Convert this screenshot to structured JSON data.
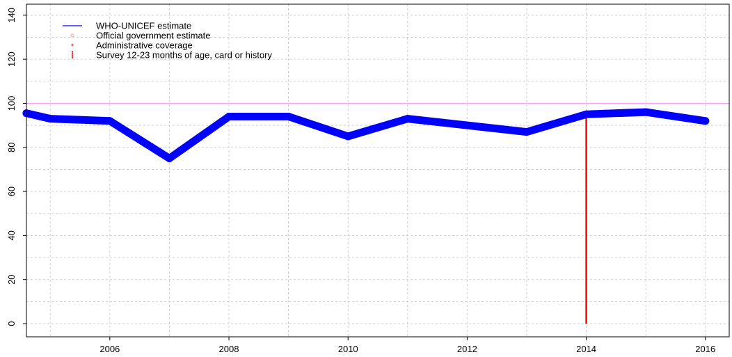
{
  "chart_data": {
    "type": "line",
    "title": "",
    "xlabel": "",
    "ylabel": "",
    "xlim": [
      2004.6,
      2016.4
    ],
    "ylim": [
      -6,
      145
    ],
    "x_ticks": [
      2006,
      2008,
      2010,
      2012,
      2014,
      2016
    ],
    "x_tick_labels": [
      "2006",
      "2008",
      "2010",
      "2012",
      "2014",
      "2016"
    ],
    "y_ticks": [
      0,
      20,
      40,
      60,
      80,
      100,
      120,
      140
    ],
    "y_tick_labels": [
      "0",
      "20",
      "40",
      "60",
      "80",
      "100",
      "120",
      "140"
    ],
    "grid": true,
    "legend_position": "top-left",
    "legend": [
      {
        "label": "WHO-UNICEF estimate",
        "symbol": "line",
        "color": "#0000ff"
      },
      {
        "label": "Official government estimate",
        "symbol": "circle",
        "color": "#ff9999"
      },
      {
        "label": "Administrative coverage",
        "symbol": "asterisk",
        "color": "#ff0000"
      },
      {
        "label": "Survey 12-23 months of age, card or history",
        "symbol": "vbar",
        "color": "#ff0000"
      }
    ],
    "series": [
      {
        "name": "WHO-UNICEF estimate",
        "color": "#0000ff",
        "x": [
          2004.6,
          2005,
          2006,
          2007,
          2008,
          2009,
          2010,
          2011,
          2012,
          2013,
          2014,
          2015,
          2016
        ],
        "y": [
          95.5,
          93,
          92,
          75,
          94,
          94,
          85,
          93,
          90,
          87,
          95,
          96,
          92
        ]
      },
      {
        "name": "Survey 12-23 months of age, card or history",
        "color": "#ff0000",
        "type": "vbar",
        "x": [
          2014
        ],
        "y": [
          94
        ]
      }
    ],
    "reference_line": {
      "y": 100,
      "color": "#ff99ff"
    }
  }
}
